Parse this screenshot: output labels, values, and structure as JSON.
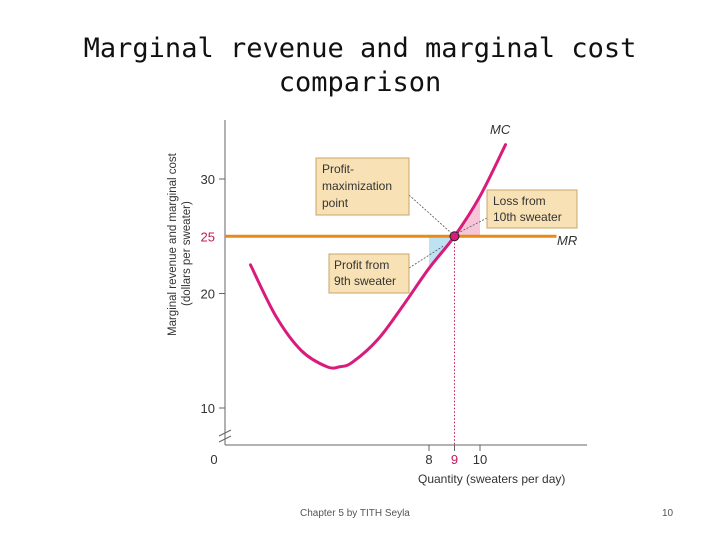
{
  "slide": {
    "title_line1": "Marginal revenue and marginal cost",
    "title_line2": "comparison",
    "footer": "Chapter 5 by TITH Seyla",
    "page_number": "10"
  },
  "chart_data": {
    "type": "line",
    "title": "",
    "xlabel": "Quantity (sweaters per day)",
    "ylabel_line1": "Marginal revenue and marginal cost",
    "ylabel_line2": "(dollars per sweater)",
    "x_ticks": [
      "0",
      "8",
      "9",
      "10"
    ],
    "x_tick_values": [
      0,
      8,
      9,
      10
    ],
    "y_ticks": [
      "10",
      "20",
      "30"
    ],
    "y_tick_values": [
      10,
      20,
      30
    ],
    "y_highlight_label": "25",
    "y_highlight_value": 25,
    "xlim": [
      0,
      14.2
    ],
    "ylim": [
      7.5,
      35
    ],
    "axis_break": true,
    "series": [
      {
        "name": "MC",
        "color": "#d81b7c",
        "x": [
          1,
          2,
          3,
          4,
          4.5,
          5,
          6,
          7,
          8,
          9,
          10,
          11
        ],
        "y": [
          22.5,
          18,
          15,
          13.6,
          13.6,
          14,
          16,
          19,
          22.2,
          25,
          28.5,
          33
        ]
      },
      {
        "name": "MR",
        "color": "#e8891a",
        "x": [
          0,
          13
        ],
        "y": [
          25,
          25
        ]
      }
    ],
    "shaded_regions": [
      {
        "name": "Profit from 9th sweater",
        "color": "#bde3f2",
        "x": [
          8,
          9
        ]
      },
      {
        "name": "Loss from 10th sweater",
        "color": "#f6c6d8",
        "x": [
          9,
          10
        ]
      }
    ],
    "highlight_point": {
      "x": 9,
      "y": 25
    },
    "annotations": [
      {
        "id": "profit-max",
        "text_lines": [
          "Profit-",
          "maximization",
          "point"
        ]
      },
      {
        "id": "profit-9th",
        "text_lines": [
          "Profit from",
          "9th sweater"
        ]
      },
      {
        "id": "loss-10th",
        "text_lines": [
          "Loss from",
          "10th sweater"
        ]
      }
    ],
    "colors": {
      "annotation_fill": "#f8e2b5",
      "annotation_border": "#c8a468",
      "axis": "#666666",
      "label_magenta": "#c2185b"
    }
  }
}
